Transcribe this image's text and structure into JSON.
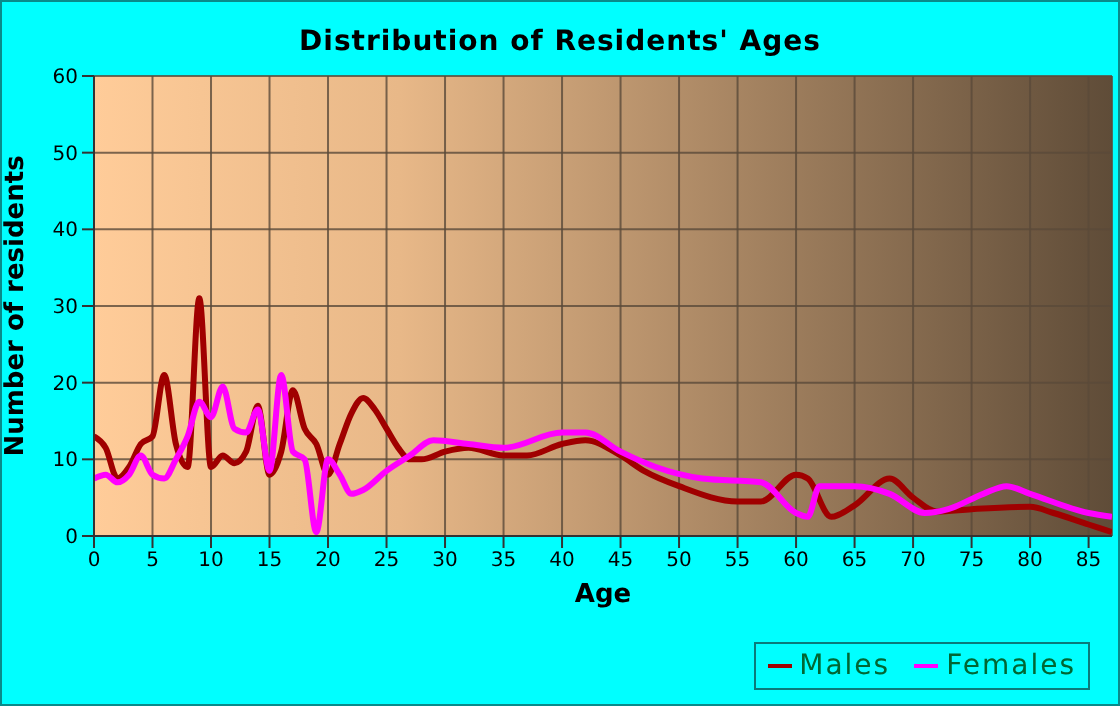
{
  "chart_data": {
    "type": "line",
    "title": "Distribution of Residents' Ages",
    "xlabel": "Age",
    "ylabel": "Number of residents",
    "xlim": [
      0,
      87
    ],
    "xticks": [
      0,
      5,
      10,
      15,
      20,
      25,
      30,
      35,
      40,
      45,
      50,
      55,
      60,
      65,
      70,
      75,
      80,
      85
    ],
    "ylim": [
      0,
      60
    ],
    "yticks": [
      0,
      10,
      20,
      30,
      40,
      50,
      60
    ],
    "grid": true,
    "legend": "bottom right",
    "marker": "none",
    "line_style": "solid",
    "series": [
      {
        "name": "Males",
        "color": "#a00000",
        "x": [
          0,
          1,
          2,
          3,
          4,
          5,
          6,
          7,
          8,
          9,
          10,
          11,
          12,
          13,
          14,
          15,
          16,
          17,
          18,
          19,
          20,
          21,
          22,
          23,
          24,
          25,
          26,
          27,
          28,
          30,
          32,
          35,
          37,
          40,
          42,
          45,
          47,
          50,
          55,
          57,
          60,
          61,
          63,
          65,
          68,
          70,
          72,
          75,
          80,
          82,
          85,
          87
        ],
        "values": [
          13,
          11.5,
          7.5,
          9,
          12,
          13,
          21,
          12,
          9,
          31,
          9,
          10.5,
          9.5,
          11,
          17,
          8,
          11,
          19,
          14,
          12,
          8,
          12,
          16,
          18,
          16.5,
          14,
          11.5,
          10,
          10,
          11,
          11.5,
          10.5,
          10.5,
          12,
          12.5,
          10.5,
          8.5,
          6.5,
          4.5,
          4.5,
          8,
          7.5,
          2.5,
          4,
          7.5,
          5,
          3.2,
          3.5,
          3.8,
          3,
          1.5,
          0.5
        ]
      },
      {
        "name": "Females",
        "color": "#ff00ff",
        "x": [
          0,
          1,
          2,
          3,
          4,
          5,
          6,
          7,
          8,
          9,
          10,
          11,
          12,
          13,
          14,
          15,
          16,
          17,
          18,
          19,
          20,
          21,
          22,
          23,
          25,
          27,
          29,
          32,
          35,
          40,
          42,
          45,
          48,
          52,
          57,
          60,
          61,
          62,
          65,
          68,
          71,
          73,
          76,
          78,
          80,
          85,
          87
        ],
        "values": [
          7.5,
          8,
          7,
          8,
          10.5,
          8,
          7.5,
          10,
          13,
          17.5,
          15.5,
          19.5,
          14,
          13.5,
          16.5,
          8.5,
          21,
          11,
          10,
          0.5,
          10,
          8,
          5.5,
          6,
          8.5,
          10.5,
          12.5,
          12,
          11.5,
          13.5,
          13.5,
          11,
          9,
          7.5,
          7,
          3,
          2.5,
          6.5,
          6.5,
          5.5,
          3,
          3.5,
          5.5,
          6.5,
          5.5,
          3,
          2.5
        ]
      }
    ]
  }
}
